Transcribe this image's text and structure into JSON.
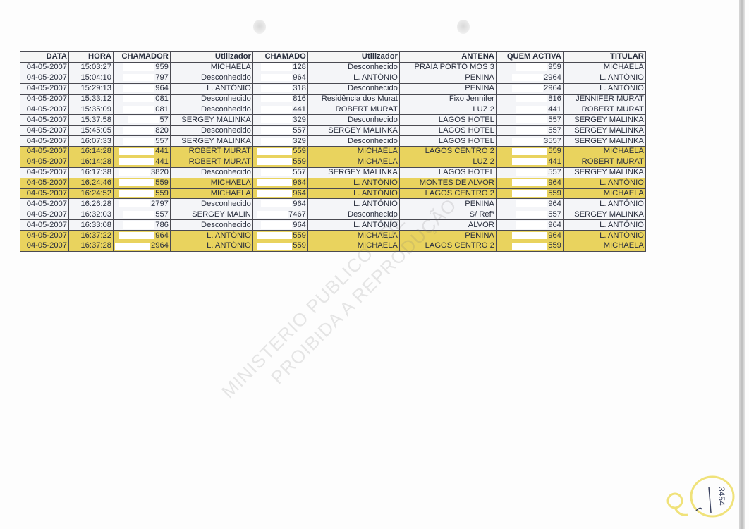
{
  "table": {
    "headers": [
      "DATA",
      "HORA",
      "CHAMADOR",
      "Utilizador",
      "CHAMADO",
      "Utilizador",
      "ANTENA",
      "QUEM ACTIVA",
      "TITULAR"
    ],
    "rows": [
      {
        "highlight": false,
        "cells": [
          "04-05-2007",
          "15:03:27",
          "959",
          "MICHAELA",
          "128",
          "Desconhecido",
          "PRAIA PORTO MOS 3",
          "959",
          "MICHAELA"
        ]
      },
      {
        "highlight": false,
        "cells": [
          "04-05-2007",
          "15:04:10",
          "797",
          "Desconhecido",
          "964",
          "L. ANTÓNIO",
          "PENINA",
          "2964",
          "L. ANTÓNIO"
        ]
      },
      {
        "highlight": false,
        "cells": [
          "04-05-2007",
          "15:29:13",
          "964",
          "L. ANTÓNIO",
          "318",
          "Desconhecido",
          "PENINA",
          "2964",
          "L. ANTÓNIO"
        ]
      },
      {
        "highlight": false,
        "cells": [
          "04-05-2007",
          "15:33:12",
          "081",
          "Desconhecido",
          "816",
          "Residência dos Murat",
          "Fixo Jennifer",
          "816",
          "JENNIFER MURAT"
        ]
      },
      {
        "highlight": false,
        "cells": [
          "04-05-2007",
          "15:35:09",
          "081",
          "Desconhecido",
          "441",
          "ROBERT MURAT",
          "LUZ 2",
          "441",
          "ROBERT MURAT"
        ]
      },
      {
        "highlight": false,
        "cells": [
          "04-05-2007",
          "15:37:58",
          "57",
          "SERGEY MALINKA",
          "329",
          "Desconhecido",
          "LAGOS HOTEL",
          "557",
          "SERGEY MALINKA"
        ]
      },
      {
        "highlight": false,
        "cells": [
          "04-05-2007",
          "15:45:05",
          "820",
          "Desconhecido",
          "557",
          "SERGEY MALINKA",
          "LAGOS HOTEL",
          "557",
          "SERGEY MALINKA"
        ]
      },
      {
        "highlight": false,
        "cells": [
          "04-05-2007",
          "16:07:33",
          "557",
          "SERGEY MALINKA",
          "329",
          "Desconhecido",
          "LAGOS HOTEL",
          "3557",
          "SERGEY MALINKA"
        ]
      },
      {
        "highlight": true,
        "cells": [
          "04-05-2007",
          "16:14:28",
          "441",
          "ROBERT MURAT",
          "559",
          "MICHAELA",
          "LAGOS CENTRO 2",
          "559",
          "MICHAELA"
        ]
      },
      {
        "highlight": true,
        "cells": [
          "04-05-2007",
          "16:14:28",
          "441",
          "ROBERT MURAT",
          "559",
          "MICHAELA",
          "LUZ 2",
          "441",
          "ROBERT MURAT"
        ]
      },
      {
        "highlight": false,
        "cells": [
          "04-05-2007",
          "16:17:38",
          "3820",
          "Desconhecido",
          "557",
          "SERGEY MALINKA",
          "LAGOS HOTEL",
          "557",
          "SERGEY MALINKA"
        ]
      },
      {
        "highlight": true,
        "cells": [
          "04-05-2007",
          "16:24:46",
          "559",
          "MICHAELA",
          "964",
          "L. ANTÓNIO",
          "MONTES DE ALVOR",
          "964",
          "L. ANTÓNIO"
        ]
      },
      {
        "highlight": true,
        "cells": [
          "04-05-2007",
          "16:24:52",
          "559",
          "MICHAELA",
          "964",
          "L. ANTÓNIO",
          "LAGOS CENTRO 2",
          "559",
          "MICHAELA"
        ]
      },
      {
        "highlight": false,
        "cells": [
          "04-05-2007",
          "16:26:28",
          "2797",
          "Desconhecido",
          "964",
          "L. ANTÓNIO",
          "PENINA",
          "964",
          "L. ANTÓNIO"
        ]
      },
      {
        "highlight": false,
        "cells": [
          "04-05-2007",
          "16:32:03",
          "557",
          "SERGEY MALIN",
          "7467",
          "Desconhecido",
          "S/ Refª",
          "557",
          "SERGEY MALINKA"
        ]
      },
      {
        "highlight": false,
        "cells": [
          "04-05-2007",
          "16:33:08",
          "786",
          "Desconhecido",
          "964",
          "L. ANTÓNIO",
          "ALVOR",
          "964",
          "L. ANTÓNIO"
        ]
      },
      {
        "highlight": true,
        "cells": [
          "04-05-2007",
          "16:37:22",
          "964",
          "L. ANTÓNIO",
          "559",
          "MICHAELA",
          "PENINA",
          "964",
          "L. ANTÓNIO"
        ]
      },
      {
        "highlight": true,
        "cells": [
          "04-05-2007",
          "16:37:28",
          "2964",
          "L. ANTÓNIO",
          "559",
          "MICHAELA",
          "LAGOS CENTRO 2",
          "559",
          "MICHAELA"
        ]
      }
    ]
  },
  "watermark": {
    "line1": "MINISTERIO PUBLICO - DE",
    "line2": "PROIBIDA A REPRODUÇÃO"
  },
  "page_number": "3454",
  "colors": {
    "highlight": "#e9d35e",
    "border": "#4a4a52",
    "annotation": "#f0e27a"
  }
}
